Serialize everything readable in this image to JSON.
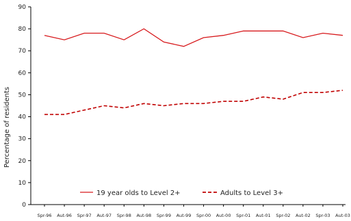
{
  "chart_data": {
    "type": "line",
    "categories": [
      "Spr-96",
      "Aut-96",
      "Spr-97",
      "Aut-97",
      "Spr-98",
      "Aut-98",
      "Spr-99",
      "Aut-99",
      "Spr-00",
      "Aut-00",
      "Spr-01",
      "Aut-01",
      "Spr-02",
      "Aut-02",
      "Spr-03",
      "Aut-03"
    ],
    "series": [
      {
        "name": "19 year olds to Level 2+",
        "values": [
          77,
          75,
          78,
          78,
          75,
          80,
          74,
          72,
          76,
          77,
          79,
          79,
          79,
          76,
          78,
          77
        ],
        "color": "#d7191c",
        "dash": "solid"
      },
      {
        "name": "Adults to Level 3+",
        "values": [
          41,
          41,
          43,
          45,
          44,
          46,
          45,
          46,
          46,
          47,
          47,
          49,
          48,
          51,
          51,
          52
        ],
        "color": "#c00000",
        "dash": "dashed"
      }
    ],
    "title": "",
    "xlabel": "",
    "ylabel": "Percentage of residents",
    "ylim": [
      0,
      90
    ],
    "yticks": [
      0,
      10,
      20,
      30,
      40,
      50,
      60,
      70,
      80,
      90
    ],
    "grid": false,
    "legend_position": "bottom-inside"
  }
}
